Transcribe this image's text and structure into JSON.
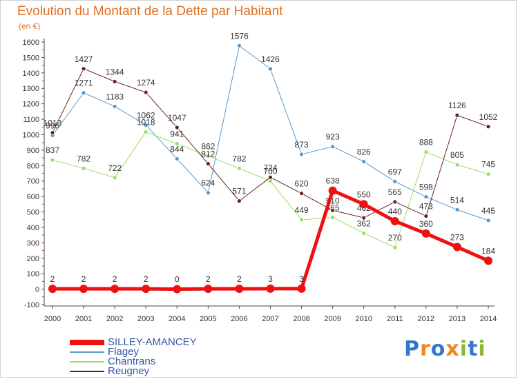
{
  "chart_data": {
    "type": "line",
    "title": "Evolution du Montant de la Dette par Habitant",
    "unit_label": "(en €)",
    "x": [
      "2000",
      "2001",
      "2002",
      "2003",
      "2004",
      "2005",
      "2006",
      "2007",
      "2008",
      "2009",
      "2010",
      "2011",
      "2012",
      "2013",
      "2014"
    ],
    "ylim": [
      -100,
      1600
    ],
    "yticks": [
      -100,
      0,
      100,
      200,
      300,
      400,
      500,
      600,
      700,
      800,
      900,
      1000,
      1100,
      1200,
      1300,
      1400,
      1500,
      1600
    ],
    "grid": false,
    "legend_position": "bottom-left",
    "series": [
      {
        "name": "SILLEY-AMANCEY",
        "color": "#ee1111",
        "stroke_width": 5,
        "marker_radius": 6,
        "values": [
          2,
          2,
          2,
          2,
          0,
          2,
          2,
          3,
          3,
          638,
          550,
          440,
          360,
          273,
          184
        ]
      },
      {
        "name": "Flagey",
        "color": "#5599cc",
        "stroke_width": 1,
        "marker_radius": 3,
        "values": [
          996,
          1271,
          1183,
          1062,
          844,
          624,
          1576,
          1426,
          873,
          923,
          826,
          697,
          598,
          514,
          445
        ]
      },
      {
        "name": "Chantrans",
        "color": "#99dd66",
        "stroke_width": 1,
        "marker_radius": 3,
        "values": [
          837,
          782,
          722,
          1018,
          941,
          862,
          782,
          700,
          449,
          465,
          362,
          270,
          888,
          805,
          745
        ]
      },
      {
        "name": "Reugney",
        "color": "#662222",
        "stroke_width": 1,
        "marker_radius": 3,
        "values": [
          1013,
          1427,
          1344,
          1274,
          1047,
          812,
          571,
          724,
          620,
          510,
          462,
          565,
          473,
          1126,
          1052
        ]
      }
    ]
  },
  "brand": {
    "text": "Proxiti",
    "letters": [
      "P",
      "r",
      "o",
      "x",
      "i",
      "t",
      "i"
    ],
    "colors": [
      "#3377cc",
      "#ee8822",
      "#3377cc",
      "#ee8822",
      "#88bb33",
      "#3377cc",
      "#88bb33"
    ]
  }
}
